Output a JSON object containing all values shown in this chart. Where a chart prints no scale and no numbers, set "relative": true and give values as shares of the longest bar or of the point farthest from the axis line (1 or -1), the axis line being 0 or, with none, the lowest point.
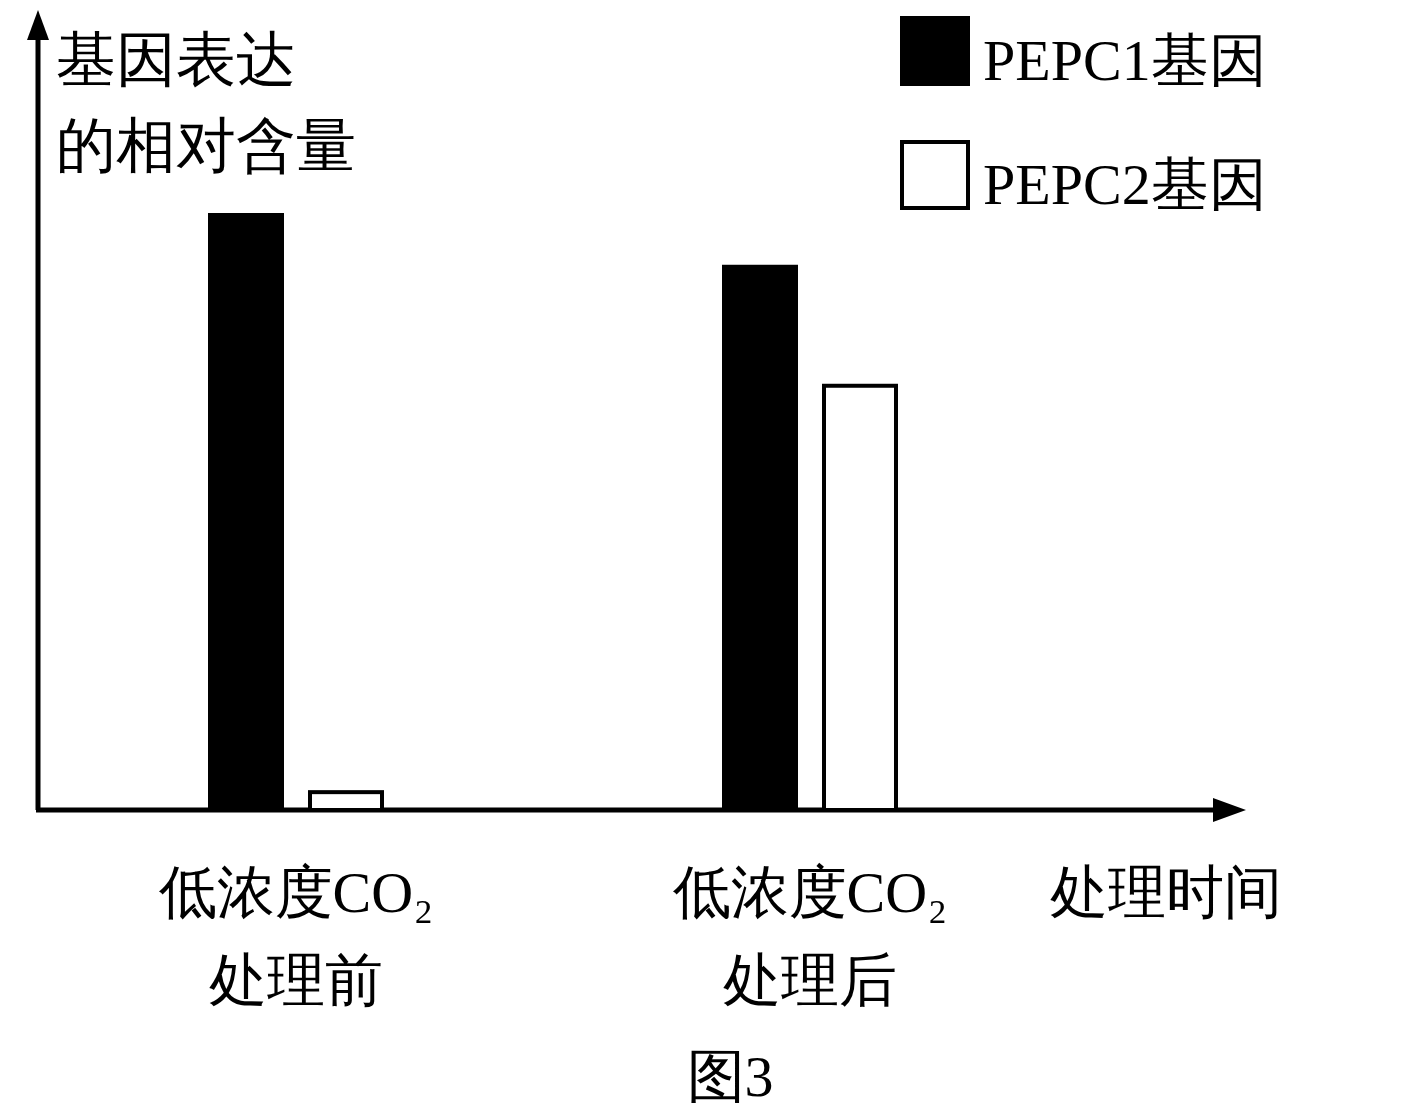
{
  "chart_data": {
    "type": "bar",
    "relative": true,
    "xlabel": "处理时间",
    "ylabel": "基因表达的相对含量",
    "categories": [
      "低浓度CO₂\n处理前",
      "低浓度CO₂\n处理后"
    ],
    "series": [
      {
        "name": "PEPC1基因",
        "color": "#000000",
        "values": [
          1,
          0.913
        ]
      },
      {
        "name": "PEPC2基因",
        "color": "#ffffff",
        "values": [
          0.03,
          0.713
        ]
      }
    ],
    "legend": "top right",
    "annotations": [
      "图3"
    ]
  }
}
